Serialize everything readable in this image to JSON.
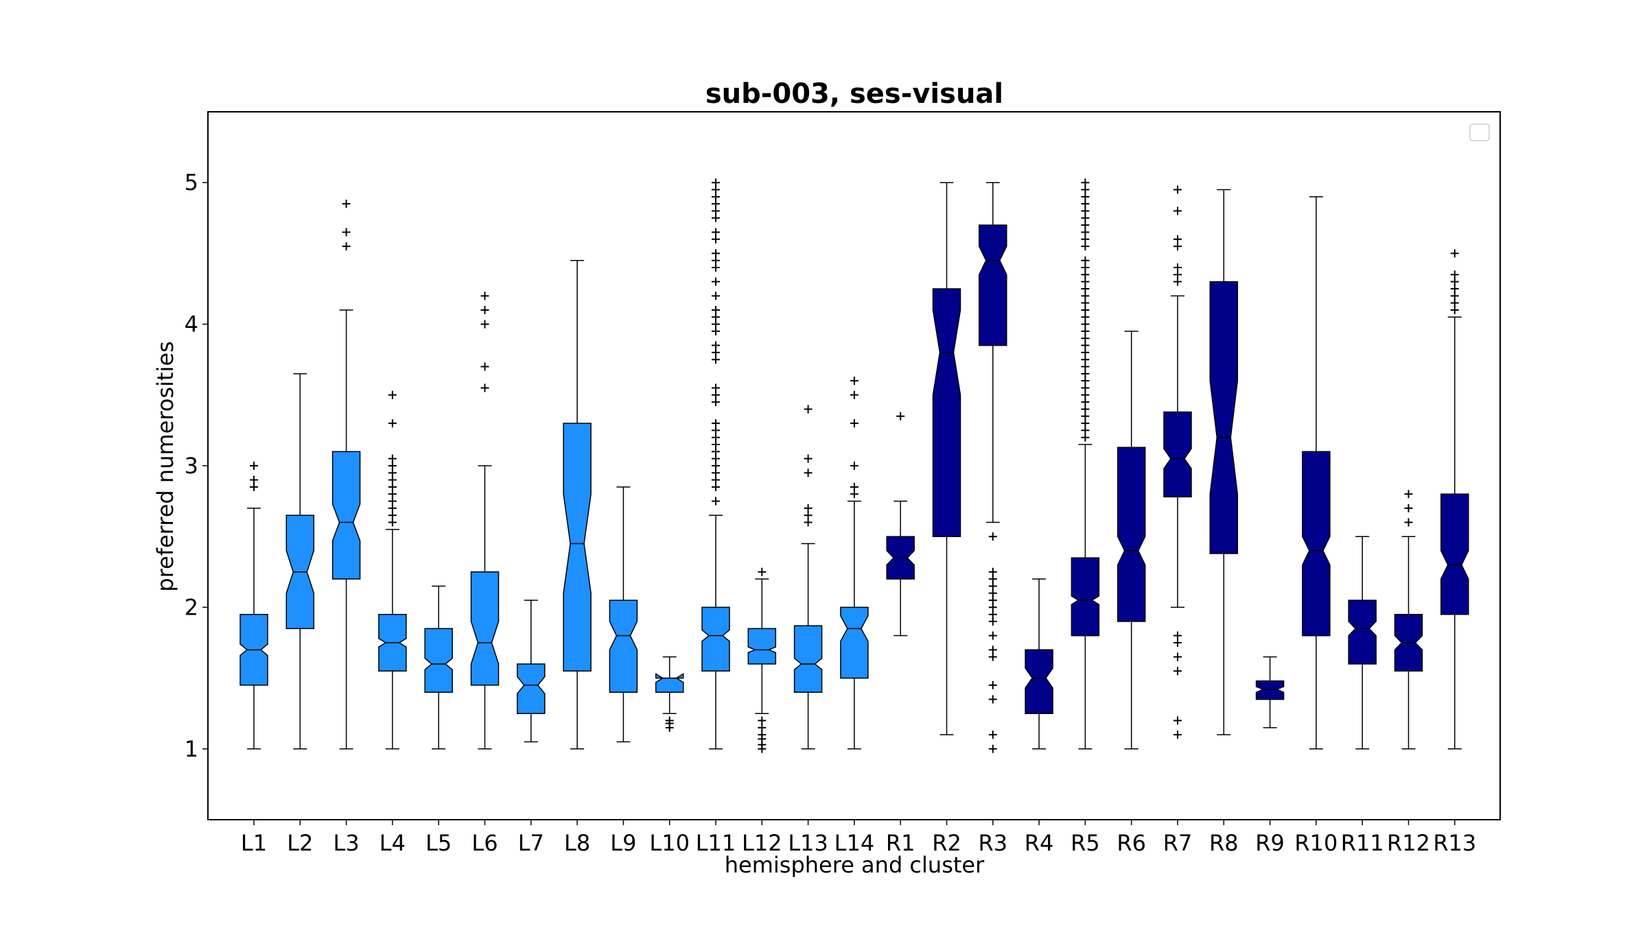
{
  "chart_data": {
    "type": "boxplot",
    "notched": true,
    "title": "sub-003, ses-visual",
    "xlabel": "hemisphere and cluster",
    "ylabel": "preferred numerosities",
    "ylim": [
      0.5,
      5.5
    ],
    "yticks": [
      1,
      2,
      3,
      4,
      5
    ],
    "grid": false,
    "legend": "top-right, empty",
    "colors": {
      "left": "#1e90ff",
      "right": "#00008b",
      "outlier": "#000000"
    },
    "categories": [
      "L1",
      "L2",
      "L3",
      "L4",
      "L5",
      "L6",
      "L7",
      "L8",
      "L9",
      "L10",
      "L11",
      "L12",
      "L13",
      "L14",
      "R1",
      "R2",
      "R3",
      "R4",
      "R5",
      "R6",
      "R7",
      "R8",
      "R9",
      "R10",
      "R11",
      "R12",
      "R13"
    ],
    "series": [
      {
        "label": "L1",
        "group": "left",
        "whislo": 1.0,
        "q1": 1.45,
        "med": 1.7,
        "q3": 1.95,
        "whishi": 2.7,
        "notch": [
          1.66,
          1.74
        ],
        "fliers": [
          2.85,
          2.9,
          3.0
        ]
      },
      {
        "label": "L2",
        "group": "left",
        "whislo": 1.0,
        "q1": 1.85,
        "med": 2.25,
        "q3": 2.65,
        "whishi": 3.65,
        "notch": [
          2.1,
          2.4
        ],
        "fliers": []
      },
      {
        "label": "L3",
        "group": "left",
        "whislo": 1.0,
        "q1": 2.2,
        "med": 2.6,
        "q3": 3.1,
        "whishi": 4.1,
        "notch": [
          2.47,
          2.73
        ],
        "fliers": [
          4.55,
          4.65,
          4.85
        ]
      },
      {
        "label": "L4",
        "group": "left",
        "whislo": 1.0,
        "q1": 1.55,
        "med": 1.75,
        "q3": 1.95,
        "whishi": 2.55,
        "notch": [
          1.72,
          1.78
        ],
        "fliers": [
          2.6,
          2.65,
          2.7,
          2.75,
          2.8,
          2.85,
          2.9,
          2.95,
          3.0,
          3.05,
          3.3,
          3.5
        ]
      },
      {
        "label": "L5",
        "group": "left",
        "whislo": 1.0,
        "q1": 1.4,
        "med": 1.6,
        "q3": 1.85,
        "whishi": 2.15,
        "notch": [
          1.56,
          1.64
        ],
        "fliers": []
      },
      {
        "label": "L6",
        "group": "left",
        "whislo": 1.0,
        "q1": 1.45,
        "med": 1.75,
        "q3": 2.25,
        "whishi": 3.0,
        "notch": [
          1.6,
          1.9
        ],
        "fliers": [
          3.55,
          3.7,
          4.0,
          4.1,
          4.2
        ]
      },
      {
        "label": "L7",
        "group": "left",
        "whislo": 1.05,
        "q1": 1.25,
        "med": 1.45,
        "q3": 1.6,
        "whishi": 2.05,
        "notch": [
          1.39,
          1.51
        ],
        "fliers": []
      },
      {
        "label": "L8",
        "group": "left",
        "whislo": 1.0,
        "q1": 1.55,
        "med": 2.45,
        "q3": 3.3,
        "whishi": 4.45,
        "notch": [
          2.1,
          2.8
        ],
        "fliers": []
      },
      {
        "label": "L9",
        "group": "left",
        "whislo": 1.05,
        "q1": 1.4,
        "med": 1.8,
        "q3": 2.05,
        "whishi": 2.85,
        "notch": [
          1.7,
          1.9
        ],
        "fliers": []
      },
      {
        "label": "L10",
        "group": "left",
        "whislo": 1.25,
        "q1": 1.4,
        "med": 1.5,
        "q3": 1.5,
        "whishi": 1.65,
        "notch": [
          1.47,
          1.53
        ],
        "fliers": [
          1.15,
          1.18,
          1.2
        ]
      },
      {
        "label": "L11",
        "group": "left",
        "whislo": 1.0,
        "q1": 1.55,
        "med": 1.8,
        "q3": 2.0,
        "whishi": 2.65,
        "notch": [
          1.76,
          1.84
        ],
        "fliers": [
          2.75,
          2.85,
          2.9,
          2.95,
          3.0,
          3.05,
          3.1,
          3.15,
          3.2,
          3.25,
          3.3,
          3.45,
          3.5,
          3.55,
          3.75,
          3.8,
          3.85,
          3.95,
          4.0,
          4.05,
          4.1,
          4.2,
          4.3,
          4.4,
          4.45,
          4.5,
          4.6,
          4.65,
          4.75,
          4.8,
          4.85,
          4.9,
          4.95,
          5.0
        ]
      },
      {
        "label": "L12",
        "group": "left",
        "whislo": 1.25,
        "q1": 1.6,
        "med": 1.7,
        "q3": 1.85,
        "whishi": 2.2,
        "notch": [
          1.68,
          1.72
        ],
        "fliers": [
          1.0,
          1.03,
          1.07,
          1.1,
          1.15,
          1.2,
          2.25
        ]
      },
      {
        "label": "L13",
        "group": "left",
        "whislo": 1.0,
        "q1": 1.4,
        "med": 1.6,
        "q3": 1.87,
        "whishi": 2.45,
        "notch": [
          1.56,
          1.64
        ],
        "fliers": [
          2.6,
          2.65,
          2.7,
          2.95,
          3.05,
          3.4
        ]
      },
      {
        "label": "L14",
        "group": "left",
        "whislo": 1.0,
        "q1": 1.5,
        "med": 1.85,
        "q3": 2.0,
        "whishi": 2.75,
        "notch": [
          1.76,
          1.94
        ],
        "fliers": [
          2.8,
          2.85,
          3.0,
          3.3,
          3.5,
          3.6
        ]
      },
      {
        "label": "R1",
        "group": "right",
        "whislo": 1.8,
        "q1": 2.2,
        "med": 2.35,
        "q3": 2.5,
        "whishi": 2.75,
        "notch": [
          2.3,
          2.4
        ],
        "fliers": [
          3.35
        ]
      },
      {
        "label": "R2",
        "group": "right",
        "whislo": 1.1,
        "q1": 2.5,
        "med": 3.8,
        "q3": 4.25,
        "whishi": 5.0,
        "notch": [
          3.5,
          4.1
        ],
        "fliers": []
      },
      {
        "label": "R3",
        "group": "right",
        "whislo": 2.6,
        "q1": 3.85,
        "med": 4.45,
        "q3": 4.7,
        "whishi": 5.0,
        "notch": [
          4.35,
          4.55
        ],
        "fliers": [
          1.0,
          1.1,
          1.35,
          1.45,
          1.65,
          1.7,
          1.8,
          1.9,
          1.95,
          2.0,
          2.05,
          2.1,
          2.15,
          2.2,
          2.25,
          2.5
        ]
      },
      {
        "label": "R4",
        "group": "right",
        "whislo": 1.0,
        "q1": 1.25,
        "med": 1.5,
        "q3": 1.7,
        "whishi": 2.2,
        "notch": [
          1.43,
          1.57
        ],
        "fliers": []
      },
      {
        "label": "R5",
        "group": "right",
        "whislo": 1.0,
        "q1": 1.8,
        "med": 2.05,
        "q3": 2.35,
        "whishi": 3.15,
        "notch": [
          2.02,
          2.08
        ],
        "fliers": [
          3.2,
          3.25,
          3.3,
          3.35,
          3.4,
          3.45,
          3.5,
          3.55,
          3.6,
          3.65,
          3.7,
          3.75,
          3.8,
          3.85,
          3.9,
          3.95,
          4.0,
          4.05,
          4.1,
          4.15,
          4.2,
          4.25,
          4.3,
          4.35,
          4.4,
          4.45,
          4.55,
          4.6,
          4.65,
          4.7,
          4.75,
          4.8,
          4.85,
          4.9,
          4.95,
          5.0
        ]
      },
      {
        "label": "R6",
        "group": "right",
        "whislo": 1.0,
        "q1": 1.9,
        "med": 2.4,
        "q3": 3.13,
        "whishi": 3.95,
        "notch": [
          2.3,
          2.5
        ],
        "fliers": []
      },
      {
        "label": "R7",
        "group": "right",
        "whislo": 2.0,
        "q1": 2.78,
        "med": 3.05,
        "q3": 3.38,
        "whishi": 4.2,
        "notch": [
          2.98,
          3.12
        ],
        "fliers": [
          1.1,
          1.2,
          1.55,
          1.65,
          1.75,
          1.8,
          4.3,
          4.35,
          4.4,
          4.55,
          4.6,
          4.8,
          4.95
        ]
      },
      {
        "label": "R8",
        "group": "right",
        "whislo": 1.1,
        "q1": 2.38,
        "med": 3.2,
        "q3": 4.3,
        "whishi": 4.95,
        "notch": [
          2.8,
          3.6
        ],
        "fliers": []
      },
      {
        "label": "R9",
        "group": "right",
        "whislo": 1.15,
        "q1": 1.35,
        "med": 1.42,
        "q3": 1.48,
        "whishi": 1.65,
        "notch": [
          1.4,
          1.44
        ],
        "fliers": []
      },
      {
        "label": "R10",
        "group": "right",
        "whislo": 1.0,
        "q1": 1.8,
        "med": 2.4,
        "q3": 3.1,
        "whishi": 4.9,
        "notch": [
          2.3,
          2.5
        ],
        "fliers": []
      },
      {
        "label": "R11",
        "group": "right",
        "whislo": 1.0,
        "q1": 1.6,
        "med": 1.85,
        "q3": 2.05,
        "whishi": 2.5,
        "notch": [
          1.8,
          1.9
        ],
        "fliers": []
      },
      {
        "label": "R12",
        "group": "right",
        "whislo": 1.0,
        "q1": 1.55,
        "med": 1.75,
        "q3": 1.95,
        "whishi": 2.5,
        "notch": [
          1.7,
          1.8
        ],
        "fliers": [
          2.6,
          2.7,
          2.8
        ]
      },
      {
        "label": "R13",
        "group": "right",
        "whislo": 1.0,
        "q1": 1.95,
        "med": 2.3,
        "q3": 2.8,
        "whishi": 4.05,
        "notch": [
          2.2,
          2.4
        ],
        "fliers": [
          4.1,
          4.15,
          4.2,
          4.25,
          4.3,
          4.35,
          4.5
        ]
      }
    ]
  }
}
